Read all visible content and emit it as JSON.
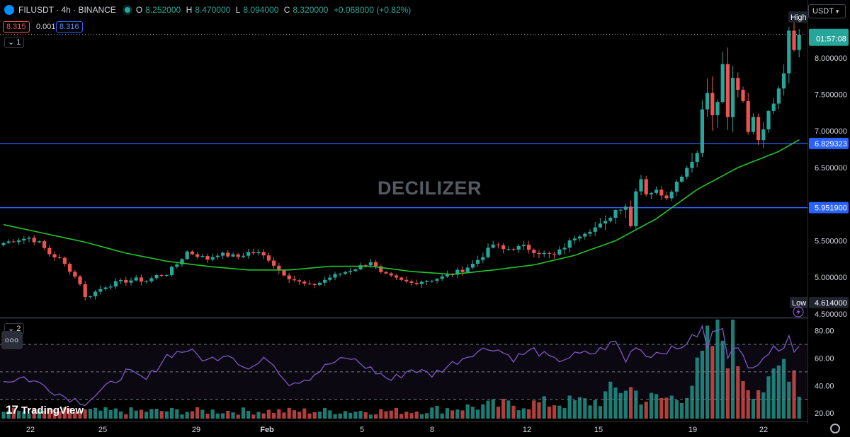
{
  "header": {
    "symbol": "FILUSDT · 4h · BINANCE",
    "open_label": "O",
    "open": "8.252000",
    "high_label": "H",
    "high": "8.470000",
    "low_label": "L",
    "low": "8.094000",
    "close_label": "C",
    "close": "8.320000",
    "change": "+0.068000 (+0.82%)"
  },
  "quote": {
    "sell": "8.315",
    "spread": "0.001",
    "buy": "8.316"
  },
  "panel_buttons": {
    "main": "1",
    "rsi": "2",
    "more": "ooo"
  },
  "currency": "USDT",
  "watermark": "DECILIZER",
  "brand": "TradingView",
  "colors": {
    "up": "#26a69a",
    "down": "#ef5350",
    "ma": "#22c52a",
    "rsi": "#7e57c2",
    "level": "#2962ff",
    "background": "#000000"
  },
  "icons": {
    "logo": "filecoin-logo-icon",
    "status": "market-open-dot-icon",
    "settings": "gear-icon",
    "alert": "lightning-icon"
  },
  "chart_data": {
    "type": "candlestick",
    "symbol": "FILUSDT",
    "interval": "4h",
    "exchange": "BINANCE",
    "price_axis": {
      "ticks": [
        "8.000000",
        "7.500000",
        "7.000000",
        "6.500000",
        "5.500000",
        "5.000000",
        "4.500000"
      ],
      "ylim": [
        4.45,
        8.5
      ]
    },
    "time_axis": {
      "ticks": [
        "22",
        "25",
        "29",
        "Feb",
        "5",
        "8",
        "12",
        "15",
        "19",
        "22"
      ]
    },
    "horizontal_lines": [
      {
        "value": 6.829323,
        "label": "6.829323"
      },
      {
        "value": 5.9519,
        "label": "5.951900"
      }
    ],
    "price_labels": {
      "high_tag": "High",
      "current_time": "01:57:08",
      "low_tag": "Low",
      "low_value": "4.614000"
    },
    "current_price": 8.32,
    "price_path": [
      [
        0,
        5.47
      ],
      [
        3,
        5.52
      ],
      [
        5,
        5.54
      ],
      [
        7,
        5.47
      ],
      [
        9,
        5.32
      ],
      [
        11,
        5.25
      ],
      [
        13,
        5.1
      ],
      [
        15,
        4.92
      ],
      [
        16,
        4.72
      ],
      [
        18,
        4.8
      ],
      [
        20,
        4.88
      ],
      [
        22,
        4.92
      ],
      [
        24,
        4.95
      ],
      [
        26,
        4.97
      ],
      [
        28,
        4.95
      ],
      [
        30,
        5.02
      ],
      [
        32,
        5.05
      ],
      [
        34,
        5.18
      ],
      [
        36,
        5.35
      ],
      [
        38,
        5.3
      ],
      [
        40,
        5.25
      ],
      [
        42,
        5.32
      ],
      [
        44,
        5.3
      ],
      [
        46,
        5.28
      ],
      [
        48,
        5.34
      ],
      [
        50,
        5.33
      ],
      [
        52,
        5.25
      ],
      [
        54,
        5.1
      ],
      [
        56,
        5.0
      ],
      [
        58,
        4.93
      ],
      [
        60,
        4.88
      ],
      [
        62,
        4.93
      ],
      [
        64,
        5.0
      ],
      [
        66,
        5.05
      ],
      [
        68,
        5.1
      ],
      [
        70,
        5.15
      ],
      [
        72,
        5.22
      ],
      [
        74,
        5.05
      ],
      [
        76,
        5.0
      ],
      [
        78,
        4.95
      ],
      [
        80,
        4.92
      ],
      [
        82,
        4.95
      ],
      [
        84,
        4.97
      ],
      [
        86,
        5.0
      ],
      [
        88,
        5.05
      ],
      [
        90,
        5.1
      ],
      [
        92,
        5.18
      ],
      [
        94,
        5.3
      ],
      [
        96,
        5.45
      ],
      [
        98,
        5.38
      ],
      [
        100,
        5.4
      ],
      [
        102,
        5.42
      ],
      [
        104,
        5.36
      ],
      [
        106,
        5.32
      ],
      [
        108,
        5.3
      ],
      [
        110,
        5.42
      ],
      [
        112,
        5.55
      ],
      [
        114,
        5.62
      ],
      [
        116,
        5.68
      ],
      [
        118,
        5.75
      ],
      [
        120,
        5.92
      ],
      [
        122,
        5.98
      ],
      [
        123,
        5.7
      ],
      [
        124,
        6.2
      ],
      [
        125,
        6.35
      ],
      [
        126,
        6.15
      ],
      [
        128,
        6.18
      ],
      [
        130,
        6.1
      ],
      [
        132,
        6.3
      ],
      [
        134,
        6.5
      ],
      [
        136,
        6.7
      ],
      [
        137,
        7.3
      ],
      [
        138,
        7.55
      ],
      [
        139,
        7.2
      ],
      [
        140,
        7.4
      ],
      [
        141,
        7.9
      ],
      [
        142,
        7.2
      ],
      [
        143,
        7.7
      ],
      [
        144,
        7.55
      ],
      [
        145,
        7.4
      ],
      [
        146,
        7.0
      ],
      [
        147,
        7.2
      ],
      [
        148,
        6.9
      ],
      [
        149,
        7.0
      ],
      [
        150,
        7.3
      ],
      [
        151,
        7.4
      ],
      [
        152,
        7.6
      ],
      [
        153,
        7.8
      ],
      [
        154,
        8.4
      ],
      [
        155,
        8.1
      ],
      [
        156,
        8.32
      ]
    ],
    "moving_average": [
      [
        0,
        5.72
      ],
      [
        8,
        5.6
      ],
      [
        16,
        5.48
      ],
      [
        24,
        5.33
      ],
      [
        32,
        5.22
      ],
      [
        40,
        5.15
      ],
      [
        48,
        5.1
      ],
      [
        56,
        5.1
      ],
      [
        64,
        5.15
      ],
      [
        72,
        5.15
      ],
      [
        80,
        5.08
      ],
      [
        88,
        5.04
      ],
      [
        96,
        5.1
      ],
      [
        104,
        5.17
      ],
      [
        112,
        5.3
      ],
      [
        120,
        5.5
      ],
      [
        128,
        5.8
      ],
      [
        136,
        6.2
      ],
      [
        144,
        6.5
      ],
      [
        152,
        6.72
      ],
      [
        156,
        6.88
      ]
    ],
    "rsi": {
      "ticks": [
        "80.00",
        "60.00",
        "40.00",
        "20.00"
      ],
      "ylim": [
        16,
        88
      ],
      "levels": [
        70,
        50,
        30
      ],
      "path": [
        [
          0,
          43
        ],
        [
          4,
          46
        ],
        [
          8,
          40
        ],
        [
          12,
          32
        ],
        [
          16,
          28
        ],
        [
          20,
          38
        ],
        [
          24,
          50
        ],
        [
          28,
          44
        ],
        [
          32,
          62
        ],
        [
          36,
          66
        ],
        [
          40,
          58
        ],
        [
          44,
          64
        ],
        [
          48,
          52
        ],
        [
          52,
          60
        ],
        [
          56,
          42
        ],
        [
          60,
          46
        ],
        [
          64,
          56
        ],
        [
          68,
          60
        ],
        [
          72,
          52
        ],
        [
          76,
          44
        ],
        [
          80,
          52
        ],
        [
          84,
          48
        ],
        [
          88,
          56
        ],
        [
          92,
          64
        ],
        [
          96,
          68
        ],
        [
          100,
          60
        ],
        [
          104,
          66
        ],
        [
          108,
          58
        ],
        [
          112,
          62
        ],
        [
          116,
          64
        ],
        [
          120,
          72
        ],
        [
          122,
          58
        ],
        [
          124,
          70
        ],
        [
          126,
          62
        ],
        [
          128,
          64
        ],
        [
          130,
          66
        ],
        [
          132,
          66
        ],
        [
          134,
          72
        ],
        [
          136,
          77
        ],
        [
          137,
          82
        ],
        [
          138,
          66
        ],
        [
          139,
          80
        ],
        [
          140,
          78
        ],
        [
          141,
          84
        ],
        [
          142,
          62
        ],
        [
          143,
          70
        ],
        [
          144,
          66
        ],
        [
          145,
          60
        ],
        [
          146,
          52
        ],
        [
          147,
          56
        ],
        [
          148,
          58
        ],
        [
          149,
          62
        ],
        [
          150,
          64
        ],
        [
          151,
          66
        ],
        [
          152,
          68
        ],
        [
          153,
          70
        ],
        [
          154,
          78
        ],
        [
          155,
          64
        ],
        [
          156,
          68
        ]
      ]
    },
    "volume_scale": [
      [
        0,
        0.08
      ],
      [
        40,
        0.08
      ],
      [
        80,
        0.08
      ],
      [
        96,
        0.14
      ],
      [
        116,
        0.18
      ],
      [
        122,
        0.35
      ],
      [
        126,
        0.2
      ],
      [
        132,
        0.22
      ],
      [
        136,
        0.45
      ],
      [
        139,
        0.8
      ],
      [
        142,
        0.9
      ],
      [
        146,
        0.4
      ],
      [
        150,
        0.3
      ],
      [
        154,
        0.7
      ],
      [
        156,
        0.35
      ]
    ],
    "n_candles": 157
  }
}
